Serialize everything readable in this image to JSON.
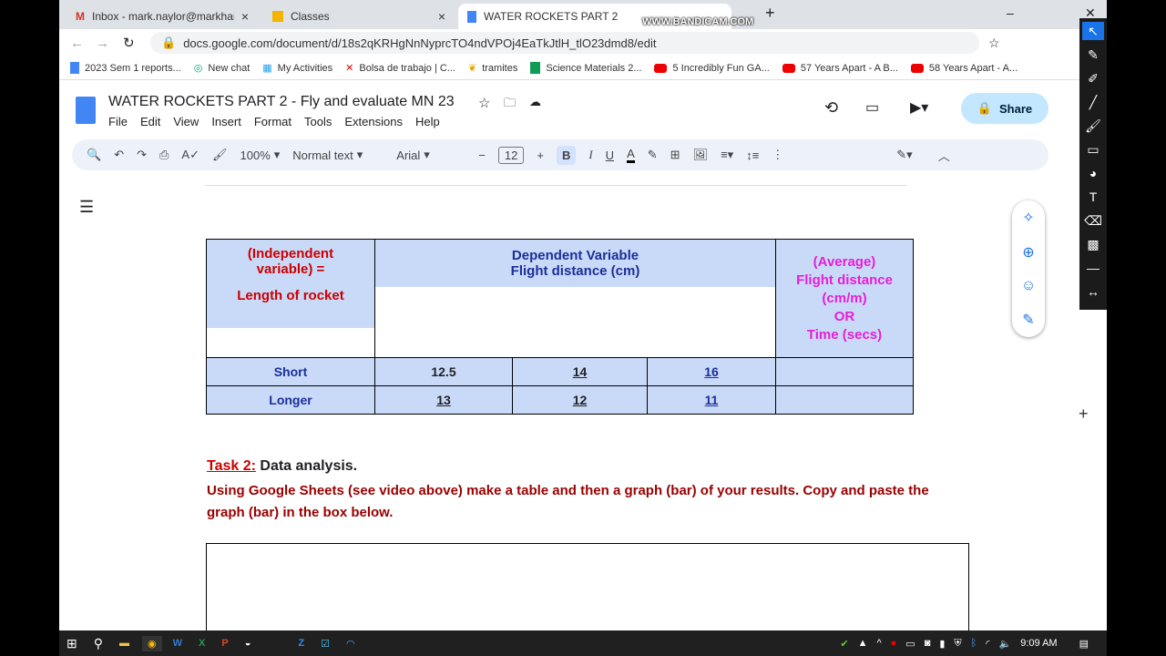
{
  "browser": {
    "tabs": [
      {
        "label": "Inbox - mark.naylor@markham.e"
      },
      {
        "label": "Classes"
      },
      {
        "label": "WATER ROCKETS PART 2"
      }
    ],
    "url": "docs.google.com/document/d/18s2qKRHgNnNyprcTO4ndVPOj4EaTkJtlH_tlO23dmd8/edit",
    "bookmarks": [
      "2023 Sem 1 reports...",
      "New chat",
      "My Activities",
      "Bolsa de trabajo | C...",
      "tramites",
      "Science Materials 2...",
      "5 Incredibly Fun GA...",
      "57 Years Apart - A B...",
      "58 Years Apart - A..."
    ]
  },
  "watermark": "WWW.BANDICAM.COM",
  "doc": {
    "title": "WATER ROCKETS PART 2 - Fly and evaluate MN 23",
    "menus": [
      "File",
      "Edit",
      "View",
      "Insert",
      "Format",
      "Tools",
      "Extensions",
      "Help"
    ],
    "share": "Share"
  },
  "toolbar": {
    "zoom": "100%",
    "style": "Normal text",
    "font": "Arial",
    "size": "12",
    "bold": "B",
    "italic": "I",
    "underline": "U",
    "text_color": "A"
  },
  "table": {
    "h1a": "(Independent variable) =",
    "h1b": "Length of rocket",
    "h2a": "Dependent Variable",
    "h2b": "Flight distance (cm)",
    "h3": [
      "(Average)",
      "Flight distance",
      "(cm/m)",
      "OR",
      "Time (secs)"
    ],
    "rows": [
      {
        "label": "Short",
        "values": [
          "12.5",
          "14",
          "16"
        ],
        "avg": ""
      },
      {
        "label": "Longer",
        "values": [
          "13",
          "12",
          "11"
        ],
        "avg": ""
      }
    ]
  },
  "task": {
    "label": "Task 2:",
    "title": " Data analysis.",
    "instructions": "Using Google Sheets (see video above) make a table and then a graph (bar) of your results. Copy and paste the graph (bar) in the box below."
  },
  "taskbar": {
    "time": "9:09 AM"
  }
}
